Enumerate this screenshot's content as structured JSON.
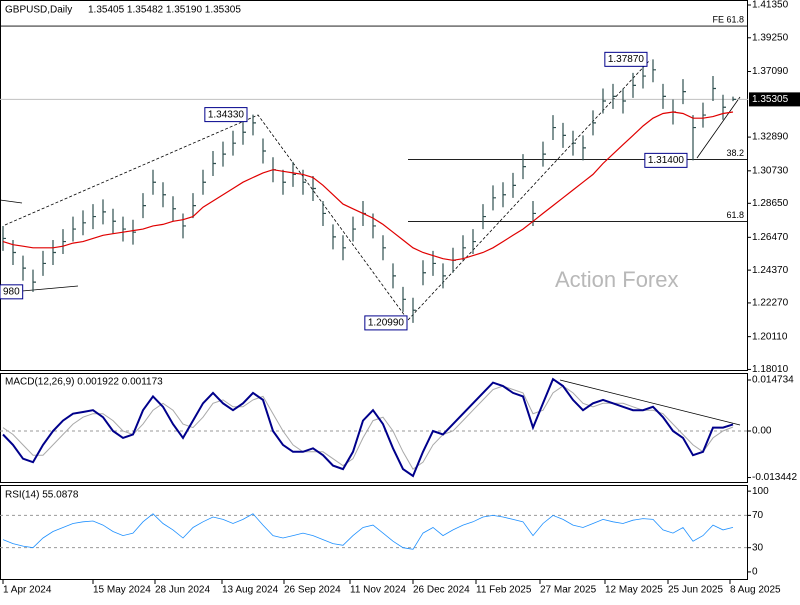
{
  "chart_data": {
    "type": "ohlc",
    "title": "GBPUSD,Daily",
    "quote": "1.35405 1.35482 1.35190 1.35305",
    "watermark": "Action Forex",
    "color": "#2f4f4f",
    "xlim": [
      -0.3,
      74.5
    ],
    "xticks": [
      {
        "value": 0,
        "label": "1 Apr 2024"
      },
      {
        "value": 9,
        "label": "15 May 2024"
      },
      {
        "value": 15.2,
        "label": "28 Jun 2024"
      },
      {
        "value": 21.9,
        "label": "13 Aug 2024"
      },
      {
        "value": 28.1,
        "label": "26 Sep 2024"
      },
      {
        "value": 34.7,
        "label": "11 Nov 2024"
      },
      {
        "value": 41,
        "label": "26 Dec 2024"
      },
      {
        "value": 47.3,
        "label": "11 Feb 2025"
      },
      {
        "value": 53.7,
        "label": "27 Mar 2025"
      },
      {
        "value": 60.2,
        "label": "12 May 2025"
      },
      {
        "value": 66.5,
        "label": "25 Jun 2025"
      },
      {
        "value": 72.7,
        "label": "8 Aug 2025"
      }
    ],
    "ylim": [
      1.1791,
      1.4167
    ],
    "yticks": [
      {
        "value": 1.4135,
        "label": "1.41350"
      },
      {
        "value": 1.3925,
        "label": "1.39250"
      },
      {
        "value": 1.3709,
        "label": "1.37090"
      },
      {
        "value": 1.3289,
        "label": "1.32890"
      },
      {
        "value": 1.3073,
        "label": "1.30730"
      },
      {
        "value": 1.2865,
        "label": "1.28650"
      },
      {
        "value": 1.2647,
        "label": "1.26470"
      },
      {
        "value": 1.2437,
        "label": "1.24370"
      },
      {
        "value": 1.2227,
        "label": "1.22270"
      },
      {
        "value": 1.2011,
        "label": "1.20110"
      },
      {
        "value": 1.1801,
        "label": "1.18010"
      }
    ],
    "high": [
      1.272,
      1.263,
      1.253,
      1.244,
      1.256,
      1.263,
      1.27,
      1.278,
      1.282,
      1.286,
      1.289,
      1.283,
      1.278,
      1.276,
      1.293,
      1.308,
      1.3,
      1.291,
      1.28,
      1.293,
      1.308,
      1.32,
      1.326,
      1.333,
      1.34,
      1.3433,
      1.328,
      1.316,
      1.308,
      1.313,
      1.308,
      1.304,
      1.288,
      1.273,
      1.266,
      1.278,
      1.288,
      1.28,
      1.266,
      1.248,
      1.233,
      1.226,
      1.25,
      1.256,
      1.248,
      1.258,
      1.266,
      1.27,
      1.286,
      1.298,
      1.3,
      1.306,
      1.318,
      1.288,
      1.326,
      1.343,
      1.338,
      1.333,
      1.33,
      1.346,
      1.36,
      1.363,
      1.36,
      1.37,
      1.376,
      1.3787,
      1.363,
      1.353,
      1.366,
      1.343,
      1.351,
      1.368,
      1.356,
      1.35482
    ],
    "low": [
      1.256,
      1.247,
      1.237,
      1.2298,
      1.24,
      1.247,
      1.254,
      1.262,
      1.266,
      1.27,
      1.273,
      1.267,
      1.262,
      1.26,
      1.277,
      1.292,
      1.284,
      1.275,
      1.264,
      1.277,
      1.292,
      1.304,
      1.31,
      1.317,
      1.324,
      1.33,
      1.312,
      1.3,
      1.292,
      1.297,
      1.292,
      1.288,
      1.272,
      1.257,
      1.25,
      1.262,
      1.272,
      1.264,
      1.25,
      1.232,
      1.217,
      1.2099,
      1.234,
      1.24,
      1.232,
      1.242,
      1.25,
      1.254,
      1.27,
      1.282,
      1.284,
      1.29,
      1.302,
      1.272,
      1.31,
      1.327,
      1.322,
      1.317,
      1.314,
      1.33,
      1.344,
      1.347,
      1.344,
      1.354,
      1.36,
      1.364,
      1.347,
      1.337,
      1.35,
      1.314,
      1.335,
      1.352,
      1.34,
      1.3519
    ],
    "close": [
      1.264,
      1.255,
      1.245,
      1.236,
      1.248,
      1.255,
      1.262,
      1.27,
      1.274,
      1.278,
      1.281,
      1.275,
      1.27,
      1.268,
      1.285,
      1.3,
      1.292,
      1.283,
      1.272,
      1.285,
      1.3,
      1.312,
      1.318,
      1.325,
      1.332,
      1.338,
      1.32,
      1.308,
      1.3,
      1.305,
      1.3,
      1.296,
      1.28,
      1.265,
      1.258,
      1.27,
      1.28,
      1.272,
      1.258,
      1.24,
      1.225,
      1.218,
      1.242,
      1.248,
      1.24,
      1.25,
      1.258,
      1.262,
      1.278,
      1.29,
      1.292,
      1.298,
      1.31,
      1.28,
      1.318,
      1.335,
      1.33,
      1.325,
      1.322,
      1.338,
      1.352,
      1.355,
      1.352,
      1.362,
      1.368,
      1.372,
      1.355,
      1.345,
      1.358,
      1.335,
      1.343,
      1.36,
      1.348,
      1.35305
    ],
    "ma": {
      "color": "#e00000",
      "values": [
        1.262,
        1.26,
        1.259,
        1.258,
        1.258,
        1.258,
        1.259,
        1.261,
        1.262,
        1.264,
        1.266,
        1.267,
        1.268,
        1.269,
        1.27,
        1.272,
        1.273,
        1.275,
        1.276,
        1.278,
        1.284,
        1.288,
        1.292,
        1.296,
        1.3,
        1.303,
        1.306,
        1.308,
        1.307,
        1.306,
        1.305,
        1.303,
        1.298,
        1.292,
        1.286,
        1.283,
        1.28,
        1.277,
        1.273,
        1.268,
        1.263,
        1.258,
        1.255,
        1.253,
        1.251,
        1.25,
        1.251,
        1.253,
        1.255,
        1.258,
        1.262,
        1.266,
        1.27,
        1.275,
        1.28,
        1.285,
        1.29,
        1.295,
        1.3,
        1.305,
        1.312,
        1.318,
        1.324,
        1.33,
        1.336,
        1.341,
        1.344,
        1.345,
        1.344,
        1.341,
        1.341,
        1.342,
        1.344,
        1.345
      ]
    },
    "levels": [
      {
        "label": "FE 61.8",
        "value": 1.4,
        "start": -0.3
      },
      {
        "label": "38.2",
        "value": 1.3146,
        "start": 40.5
      },
      {
        "label": "61.8",
        "value": 1.2748,
        "start": 40.5
      }
    ],
    "annotations": [
      {
        "label": "980",
        "value": 1.2298,
        "index": 0
      },
      {
        "label": "1.34330",
        "value": 1.3433,
        "index": 25
      },
      {
        "label": "1.20990",
        "value": 1.2099,
        "index": 41
      },
      {
        "label": "1.37870",
        "value": 1.3787,
        "index": 65
      },
      {
        "label": "1.31400",
        "value": 1.314,
        "index": 69
      }
    ],
    "macd": {
      "title": "MACD(12,26,9) 0.001922 0.001173",
      "ylim": [
        -0.01502,
        0.01676
      ],
      "yticks": [
        0.014734,
        {
          "value": 0,
          "label": "0.00"
        },
        -0.013442
      ],
      "levels": [
        0
      ],
      "series": [
        {
          "color": "#00008b",
          "values": [
            -0.001,
            -0.004,
            -0.008,
            -0.009,
            -0.004,
            0.0,
            0.003,
            0.005,
            0.0055,
            0.006,
            0.004,
            0.0,
            -0.002,
            -0.001,
            0.006,
            0.01,
            0.007,
            0.002,
            -0.002,
            0.003,
            0.008,
            0.011,
            0.008,
            0.006,
            0.008,
            0.011,
            0.009,
            0.0,
            -0.004,
            -0.006,
            -0.006,
            -0.005,
            -0.007,
            -0.01,
            -0.011,
            -0.006,
            0.003,
            0.006,
            0.002,
            -0.005,
            -0.011,
            -0.013,
            -0.006,
            0.0,
            -0.001,
            0.002,
            0.005,
            0.008,
            0.011,
            0.014,
            0.013,
            0.011,
            0.01,
            0.001,
            0.008,
            0.015,
            0.013,
            0.009,
            0.006,
            0.008,
            0.009,
            0.008,
            0.007,
            0.006,
            0.006,
            0.007,
            0.004,
            0.0,
            -0.002,
            -0.007,
            -0.006,
            0.001,
            0.001,
            0.001922
          ]
        },
        {
          "color": "#a9a9a9",
          "values": [
            0.001,
            -0.001,
            -0.004,
            -0.007,
            -0.007,
            -0.004,
            -0.001,
            0.002,
            0.004,
            0.005,
            0.005,
            0.003,
            0.0,
            -0.001,
            0.002,
            0.006,
            0.008,
            0.006,
            0.002,
            0.001,
            0.004,
            0.008,
            0.009,
            0.007,
            0.007,
            0.009,
            0.01,
            0.005,
            0.0,
            -0.004,
            -0.006,
            -0.006,
            -0.006,
            -0.008,
            -0.01,
            -0.008,
            -0.002,
            0.003,
            0.004,
            0.0,
            -0.006,
            -0.011,
            -0.009,
            -0.004,
            -0.001,
            0.0,
            0.003,
            0.006,
            0.009,
            0.012,
            0.013,
            0.012,
            0.011,
            0.005,
            0.006,
            0.011,
            0.013,
            0.011,
            0.008,
            0.007,
            0.008,
            0.008,
            0.008,
            0.007,
            0.006,
            0.006,
            0.005,
            0.002,
            -0.001,
            -0.004,
            -0.006,
            -0.002,
            0.0,
            0.001173
          ]
        }
      ]
    },
    "rsi": {
      "title": "RSI(14) 55.0878",
      "ylim": [
        -10,
        107.6
      ],
      "yticks": [
        100,
        70,
        30,
        0
      ],
      "levels": [
        70,
        30
      ],
      "color": "#1e90ff",
      "values": [
        40,
        35,
        32,
        30,
        42,
        50,
        55,
        60,
        62,
        63,
        58,
        50,
        45,
        48,
        62,
        72,
        60,
        52,
        42,
        55,
        62,
        68,
        65,
        60,
        65,
        72,
        58,
        45,
        42,
        45,
        48,
        45,
        40,
        35,
        33,
        45,
        55,
        58,
        48,
        38,
        30,
        28,
        48,
        55,
        45,
        52,
        58,
        62,
        68,
        70,
        68,
        65,
        62,
        45,
        60,
        70,
        65,
        58,
        55,
        60,
        65,
        62,
        60,
        64,
        66,
        65,
        52,
        48,
        55,
        38,
        45,
        58,
        52,
        55.0878
      ]
    }
  }
}
